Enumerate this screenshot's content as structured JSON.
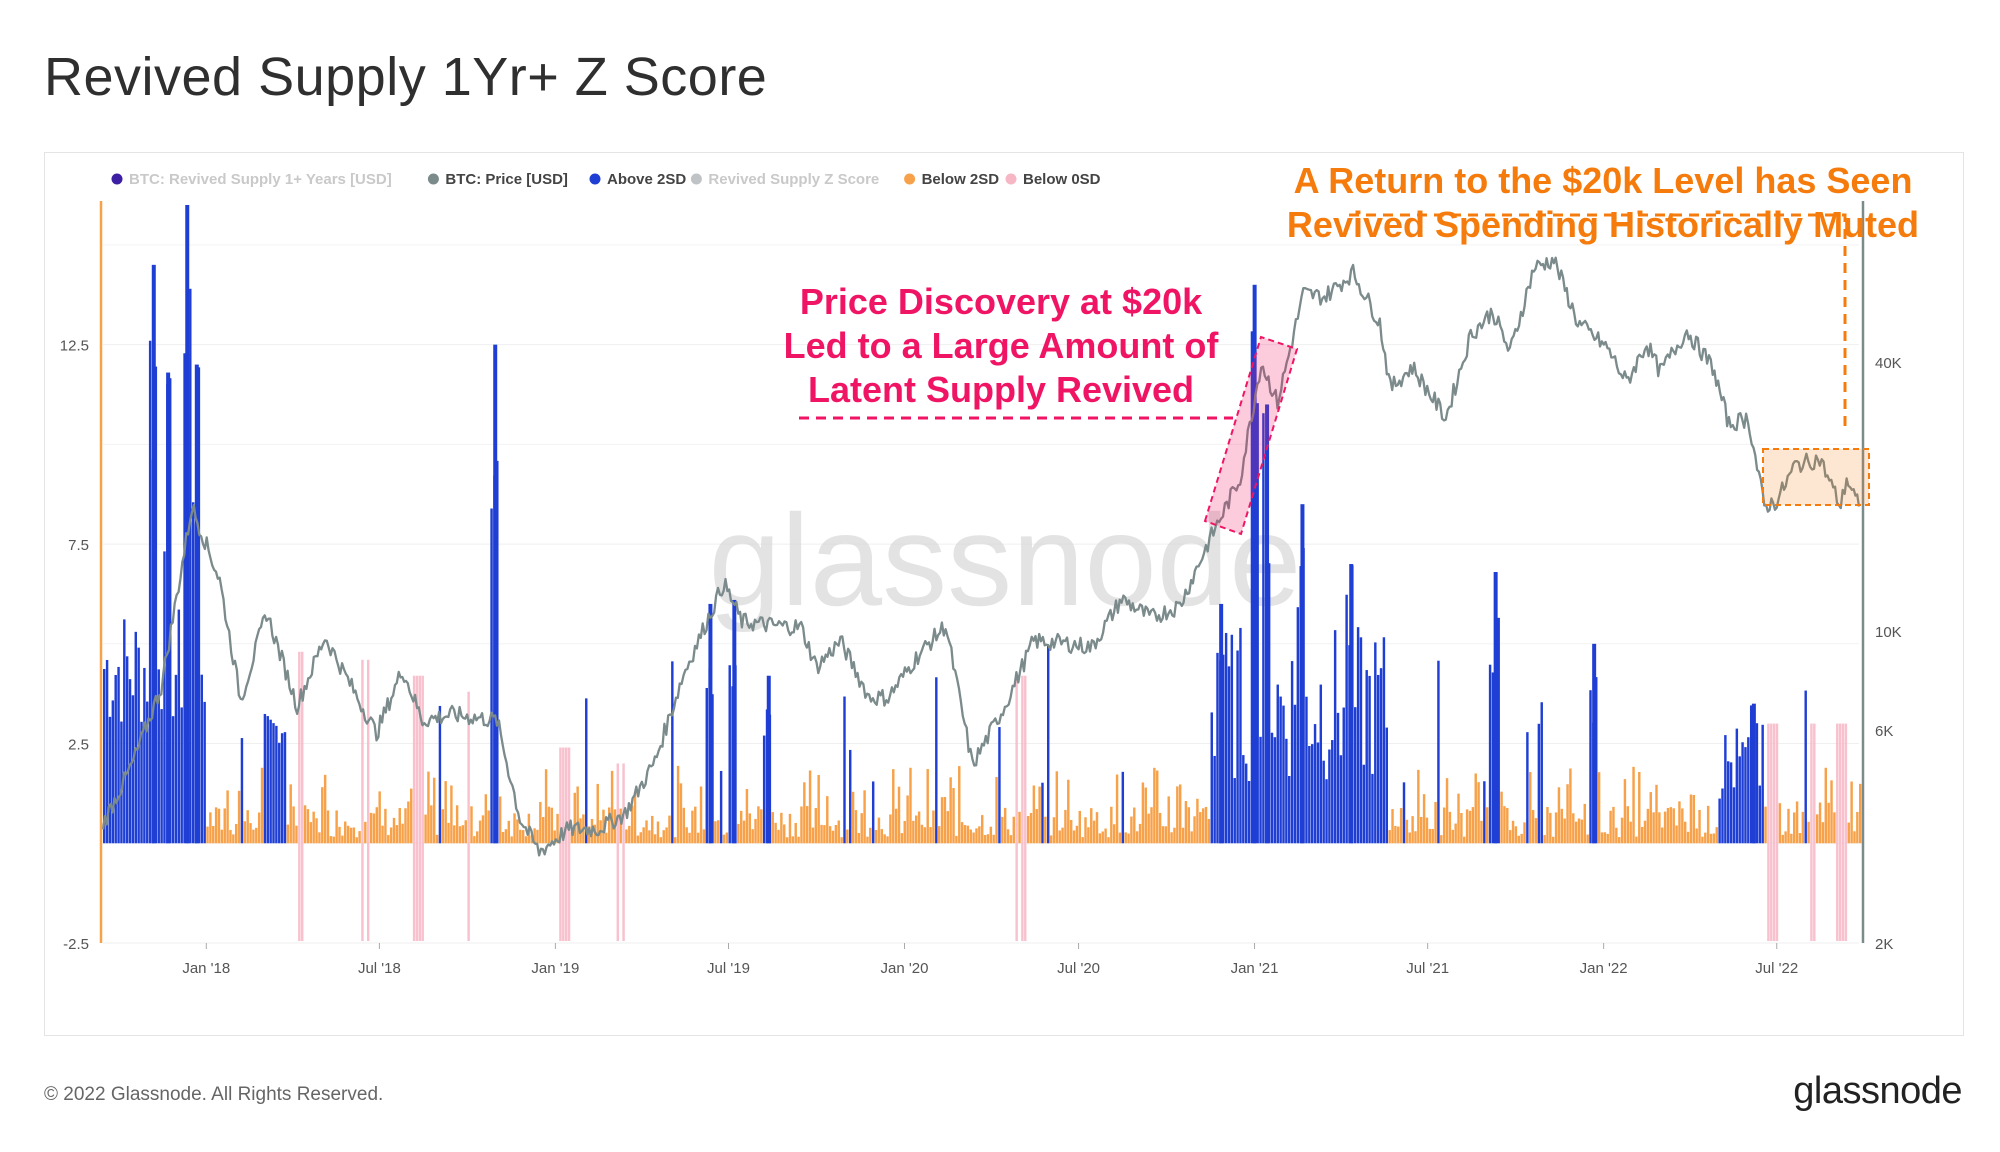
{
  "title": "Revived Supply 1Yr+ Z Score",
  "footer": {
    "copyright": "© 2022 Glassnode. All Rights Reserved.",
    "logo_text": "glassnode"
  },
  "watermark": "glassnode",
  "legend": [
    {
      "label": "BTC: Revived Supply 1+ Years [USD]",
      "color": "#3d1fa3",
      "muted": true
    },
    {
      "label": "BTC: Price [USD]",
      "color": "#7b8a8b",
      "muted": false
    },
    {
      "label": "Above 2SD",
      "color": "#1f3fd4",
      "muted": false
    },
    {
      "label": "Revived Supply Z Score",
      "color": "#bfc3c6",
      "muted": true
    },
    {
      "label": "Below 2SD",
      "color": "#f7a24a",
      "muted": false
    },
    {
      "label": "Below 0SD",
      "color": "#f7b6c4",
      "muted": false
    }
  ],
  "annotations": {
    "price_discovery": [
      "Price Discovery at $20k",
      "Led to a Large Amount of",
      "Latent Supply Revived"
    ],
    "return_20k": [
      "A Return to the $20k Level has Seen",
      "Revived Spending Historically Muted"
    ],
    "price_discovery_color": "#f01564",
    "return_20k_color": "#f57c0c"
  },
  "chart_data": {
    "type": "bar",
    "x_ticks": [
      "Jan '18",
      "Jul '18",
      "Jan '19",
      "Jul '19",
      "Jan '20",
      "Jul '20",
      "Jan '21",
      "Jul '21",
      "Jan '22",
      "Jul '22"
    ],
    "y_left": {
      "ticks": [
        "12.5",
        "7.5",
        "2.5",
        "-2.5"
      ],
      "range": [
        -2.5,
        16
      ]
    },
    "y_right": {
      "ticks": [
        "40K",
        "10K",
        "6K",
        "2K"
      ],
      "scale": "log",
      "range": [
        2000,
        90000
      ]
    },
    "x_range": [
      "2017-09-15",
      "2022-09-25"
    ],
    "series": [
      {
        "name": "BTC: Price [USD]",
        "type": "line",
        "color": "#7b8a8b",
        "points": [
          [
            "2017-09-15",
            3700
          ],
          [
            "2017-10-15",
            5000
          ],
          [
            "2017-11-15",
            7500
          ],
          [
            "2017-12-17",
            19000
          ],
          [
            "2018-01-15",
            13000
          ],
          [
            "2018-02-06",
            7000
          ],
          [
            "2018-03-05",
            11000
          ],
          [
            "2018-04-06",
            6800
          ],
          [
            "2018-05-05",
            9700
          ],
          [
            "2018-06-28",
            5900
          ],
          [
            "2018-07-25",
            8200
          ],
          [
            "2018-08-15",
            6300
          ],
          [
            "2018-09-15",
            6500
          ],
          [
            "2018-11-01",
            6300
          ],
          [
            "2018-11-25",
            3800
          ],
          [
            "2018-12-15",
            3200
          ],
          [
            "2019-01-15",
            3600
          ],
          [
            "2019-02-15",
            3600
          ],
          [
            "2019-03-15",
            3900
          ],
          [
            "2019-04-15",
            5100
          ],
          [
            "2019-05-15",
            8000
          ],
          [
            "2019-06-26",
            12800
          ],
          [
            "2019-07-15",
            10500
          ],
          [
            "2019-08-15",
            10300
          ],
          [
            "2019-09-15",
            10200
          ],
          [
            "2019-10-01",
            8300
          ],
          [
            "2019-10-26",
            9500
          ],
          [
            "2019-11-25",
            7100
          ],
          [
            "2019-12-15",
            7100
          ],
          [
            "2020-01-15",
            8800
          ],
          [
            "2020-02-13",
            10300
          ],
          [
            "2020-03-12",
            5000
          ],
          [
            "2020-04-15",
            6800
          ],
          [
            "2020-05-15",
            9500
          ],
          [
            "2020-06-15",
            9400
          ],
          [
            "2020-07-15",
            9200
          ],
          [
            "2020-08-15",
            11800
          ],
          [
            "2020-09-15",
            10700
          ],
          [
            "2020-10-15",
            11400
          ],
          [
            "2020-11-15",
            16000
          ],
          [
            "2020-12-17",
            22000
          ],
          [
            "2021-01-08",
            40000
          ],
          [
            "2021-01-25",
            32500
          ],
          [
            "2021-02-21",
            57000
          ],
          [
            "2021-03-15",
            56000
          ],
          [
            "2021-04-14",
            63500
          ],
          [
            "2021-05-12",
            49000
          ],
          [
            "2021-05-23",
            35000
          ],
          [
            "2021-06-15",
            39000
          ],
          [
            "2021-07-20",
            30000
          ],
          [
            "2021-08-15",
            46000
          ],
          [
            "2021-09-07",
            52000
          ],
          [
            "2021-09-25",
            42000
          ],
          [
            "2021-10-20",
            65000
          ],
          [
            "2021-11-10",
            68000
          ],
          [
            "2021-12-05",
            49000
          ],
          [
            "2022-01-05",
            43000
          ],
          [
            "2022-01-25",
            36000
          ],
          [
            "2022-02-15",
            44000
          ],
          [
            "2022-03-01",
            38000
          ],
          [
            "2022-03-29",
            47000
          ],
          [
            "2022-04-25",
            39000
          ],
          [
            "2022-05-12",
            29000
          ],
          [
            "2022-06-01",
            30000
          ],
          [
            "2022-06-18",
            19000
          ],
          [
            "2022-07-01",
            19500
          ],
          [
            "2022-07-20",
            23500
          ],
          [
            "2022-08-15",
            24300
          ],
          [
            "2022-09-06",
            19000
          ],
          [
            "2022-09-12",
            22000
          ],
          [
            "2022-09-25",
            19000
          ]
        ]
      },
      {
        "name": "Above 2SD",
        "type": "bars",
        "color": "#1f3fd4",
        "spikes": [
          [
            "2017-11-05",
            14.5
          ],
          [
            "2017-11-20",
            11.8
          ],
          [
            "2017-12-10",
            16.0
          ],
          [
            "2017-12-20",
            12.0
          ],
          [
            "2018-10-28",
            12.5
          ],
          [
            "2019-06-10",
            6.0
          ],
          [
            "2019-07-05",
            6.1
          ],
          [
            "2019-08-10",
            4.2
          ],
          [
            "2020-11-25",
            6.0
          ],
          [
            "2020-12-30",
            14.0
          ],
          [
            "2021-01-12",
            11.0
          ],
          [
            "2021-02-18",
            8.5
          ],
          [
            "2021-04-10",
            7.0
          ],
          [
            "2021-09-08",
            6.8
          ],
          [
            "2021-12-20",
            5.0
          ],
          [
            "2022-06-05",
            3.5
          ]
        ]
      },
      {
        "name": "Below 2SD",
        "type": "bars",
        "color": "#f7a24a",
        "description_range": [
          0.3,
          2.0
        ]
      },
      {
        "name": "Below 0SD",
        "type": "bars",
        "color": "#f7b6c4",
        "spikes": [
          [
            "2018-04-10",
            4.8
          ],
          [
            "2018-06-15",
            4.6
          ],
          [
            "2018-08-10",
            4.2
          ],
          [
            "2018-10-01",
            3.8
          ],
          [
            "2019-01-10",
            2.4
          ],
          [
            "2019-03-10",
            2.0
          ],
          [
            "2020-05-01",
            4.2
          ],
          [
            "2022-06-25",
            3.0
          ],
          [
            "2022-08-05",
            3.0
          ],
          [
            "2022-09-05",
            3.0
          ]
        ]
      }
    ],
    "grid": true,
    "legend_position": "top-left"
  }
}
